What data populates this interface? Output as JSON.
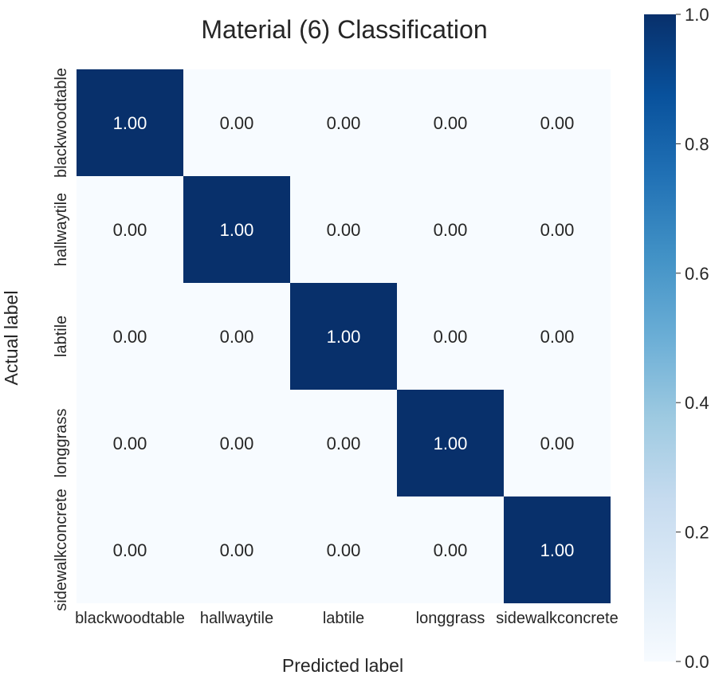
{
  "chart_data": {
    "type": "heatmap",
    "title": "Material (6) Classification",
    "xlabel": "Predicted label",
    "ylabel": "Actual label",
    "x_categories": [
      "blackwoodtable",
      "hallwaytile",
      "labtile",
      "longgrass",
      "sidewalkconcrete"
    ],
    "y_categories": [
      "blackwoodtable",
      "hallwaytile",
      "labtile",
      "longgrass",
      "sidewalkconcrete"
    ],
    "values": [
      [
        1.0,
        0.0,
        0.0,
        0.0,
        0.0
      ],
      [
        0.0,
        1.0,
        0.0,
        0.0,
        0.0
      ],
      [
        0.0,
        0.0,
        1.0,
        0.0,
        0.0
      ],
      [
        0.0,
        0.0,
        0.0,
        1.0,
        0.0
      ],
      [
        0.0,
        0.0,
        0.0,
        0.0,
        1.0
      ]
    ],
    "cell_labels": [
      [
        "1.00",
        "0.00",
        "0.00",
        "0.00",
        "0.00"
      ],
      [
        "0.00",
        "1.00",
        "0.00",
        "0.00",
        "0.00"
      ],
      [
        "0.00",
        "0.00",
        "1.00",
        "0.00",
        "0.00"
      ],
      [
        "0.00",
        "0.00",
        "0.00",
        "1.00",
        "0.00"
      ],
      [
        "0.00",
        "0.00",
        "0.00",
        "0.00",
        "1.00"
      ]
    ],
    "colorbar": {
      "range": [
        0.0,
        1.0
      ],
      "ticks": [
        "0.0",
        "0.2",
        "0.4",
        "0.6",
        "0.8",
        "1.0"
      ],
      "colormap": "Blues",
      "low_color": "#f7fbff",
      "high_color": "#08306b"
    },
    "grid": false
  }
}
